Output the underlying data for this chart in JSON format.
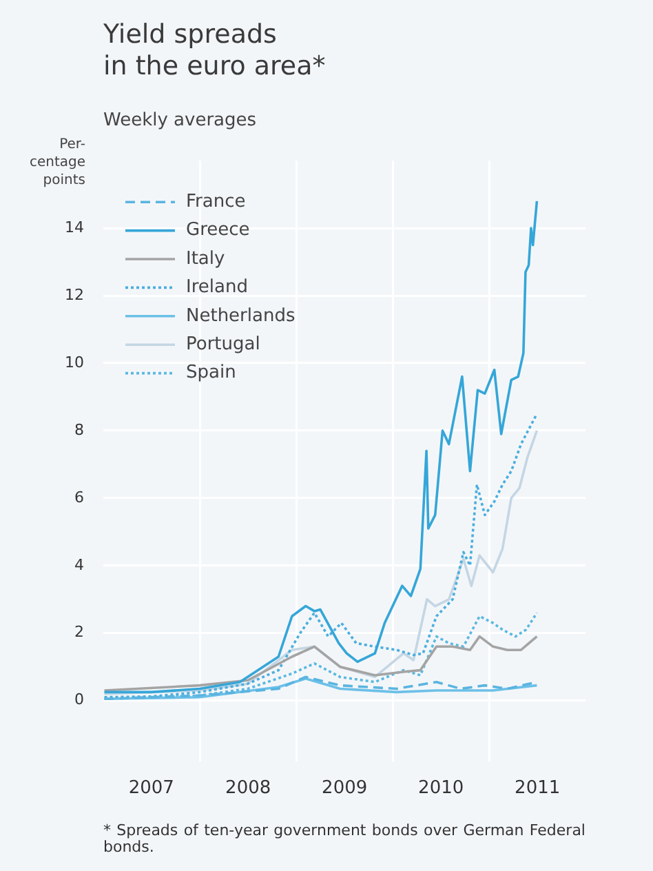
{
  "chart_data": {
    "type": "line",
    "title": "Yield spreads\nin the euro area*",
    "subtitle": "Weekly averages",
    "ylabel": "Per-\ncentage\npoints",
    "annotations": [
      "* Spreads of ten-year government bonds over German Federal bonds."
    ],
    "xlim": [
      "2007-01-01",
      "2011-12-31"
    ],
    "xticks": [
      {
        "value": "2007-07-02",
        "label": "2007"
      },
      {
        "value": "2008-01-01",
        "label": null
      },
      {
        "value": "2008-07-02",
        "label": "2008"
      },
      {
        "value": "2009-01-01",
        "label": null
      },
      {
        "value": "2009-07-02",
        "label": "2009"
      },
      {
        "value": "2010-01-01",
        "label": null
      },
      {
        "value": "2010-07-02",
        "label": "2010"
      },
      {
        "value": "2011-01-01",
        "label": null
      },
      {
        "value": "2011-07-02",
        "label": "2011"
      }
    ],
    "ylim": [
      -1.8,
      16
    ],
    "yticks": [
      0,
      2,
      4,
      6,
      8,
      10,
      12,
      14
    ],
    "grid": true,
    "legend": "top left",
    "marker": "none",
    "series": [
      {
        "name": "France",
        "color": "#5ab4e0",
        "line_style": "dashed",
        "x": [
          "2007-01-05",
          "2008-01-01",
          "2008-10-25",
          "2009-02-05",
          "2009-06-15",
          "2010-01-15",
          "2010-06-15",
          "2010-09-15",
          "2010-12-15",
          "2011-03-10",
          "2011-06-30"
        ],
        "values": [
          0.05,
          0.15,
          0.35,
          0.7,
          0.45,
          0.35,
          0.55,
          0.35,
          0.45,
          0.35,
          0.55
        ]
      },
      {
        "name": "Greece",
        "color": "#35a6d8",
        "line_style": "solid",
        "x": [
          "2007-01-05",
          "2007-07-01",
          "2008-01-01",
          "2008-06-01",
          "2008-10-25",
          "2008-12-15",
          "2009-02-05",
          "2009-03-10",
          "2009-04-01",
          "2009-06-10",
          "2009-07-10",
          "2009-08-20",
          "2009-10-25",
          "2009-12-01",
          "2010-02-05",
          "2010-03-10",
          "2010-04-15",
          "2010-05-08",
          "2010-05-15",
          "2010-06-10",
          "2010-07-08",
          "2010-08-01",
          "2010-09-20",
          "2010-10-20",
          "2010-11-18",
          "2010-12-15",
          "2011-01-20",
          "2011-02-15",
          "2011-03-25",
          "2011-04-20",
          "2011-05-10",
          "2011-05-18",
          "2011-05-30",
          "2011-06-08",
          "2011-06-15",
          "2011-06-30"
        ],
        "values": [
          0.25,
          0.25,
          0.35,
          0.55,
          1.3,
          2.5,
          2.8,
          2.65,
          2.7,
          1.7,
          1.4,
          1.15,
          1.4,
          2.3,
          3.4,
          3.1,
          3.9,
          7.4,
          5.1,
          5.5,
          8.0,
          7.6,
          9.6,
          6.8,
          9.2,
          9.1,
          9.8,
          7.9,
          9.5,
          9.6,
          10.3,
          12.7,
          12.9,
          14.0,
          13.5,
          14.8
        ]
      },
      {
        "name": "Italy",
        "color": "#a4a4a4",
        "line_style": "solid",
        "x": [
          "2007-01-05",
          "2008-01-01",
          "2008-07-01",
          "2008-12-15",
          "2009-03-10",
          "2009-06-15",
          "2009-10-25",
          "2010-02-10",
          "2010-04-15",
          "2010-06-15",
          "2010-08-15",
          "2010-10-20",
          "2010-11-25",
          "2011-01-15",
          "2011-03-10",
          "2011-05-01",
          "2011-06-30"
        ],
        "values": [
          0.3,
          0.45,
          0.6,
          1.3,
          1.6,
          1.0,
          0.75,
          0.85,
          0.9,
          1.6,
          1.6,
          1.5,
          1.9,
          1.6,
          1.5,
          1.5,
          1.9
        ]
      },
      {
        "name": "Ireland",
        "color": "#4aaede",
        "line_style": "dotted",
        "x": [
          "2007-01-05",
          "2007-07-01",
          "2008-01-01",
          "2008-07-01",
          "2008-10-25",
          "2009-01-15",
          "2009-03-10",
          "2009-05-01",
          "2009-06-20",
          "2009-08-15",
          "2009-10-25",
          "2010-01-15",
          "2010-03-20",
          "2010-04-25",
          "2010-06-15",
          "2010-08-15",
          "2010-09-25",
          "2010-10-20",
          "2010-11-15",
          "2010-12-15",
          "2011-01-20",
          "2011-02-20",
          "2011-03-25",
          "2011-05-01",
          "2011-06-30"
        ],
        "values": [
          0.1,
          0.12,
          0.25,
          0.5,
          0.9,
          2.0,
          2.6,
          1.9,
          2.3,
          1.7,
          1.6,
          1.5,
          1.35,
          1.4,
          2.5,
          3.0,
          4.4,
          4.0,
          6.4,
          5.5,
          5.9,
          6.4,
          6.8,
          7.6,
          8.5
        ]
      },
      {
        "name": "Netherlands",
        "color": "#6cc0e8",
        "line_style": "solid",
        "x": [
          "2007-01-05",
          "2008-01-01",
          "2008-10-25",
          "2009-02-05",
          "2009-06-15",
          "2010-01-15",
          "2010-06-15",
          "2011-01-15",
          "2011-06-30"
        ],
        "values": [
          0.05,
          0.1,
          0.4,
          0.65,
          0.35,
          0.25,
          0.3,
          0.3,
          0.45
        ]
      },
      {
        "name": "Portugal",
        "color": "#c4d6e4",
        "line_style": "solid",
        "x": [
          "2007-01-05",
          "2008-01-01",
          "2008-07-01",
          "2008-12-15",
          "2009-03-10",
          "2009-06-15",
          "2009-10-25",
          "2010-02-10",
          "2010-03-20",
          "2010-05-10",
          "2010-06-10",
          "2010-08-01",
          "2010-09-25",
          "2010-10-25",
          "2010-11-25",
          "2011-01-15",
          "2011-02-20",
          "2011-03-25",
          "2011-04-25",
          "2011-05-25",
          "2011-06-30"
        ],
        "values": [
          0.2,
          0.3,
          0.5,
          1.5,
          1.6,
          1.0,
          0.7,
          1.4,
          1.2,
          3.0,
          2.8,
          3.0,
          4.2,
          3.4,
          4.3,
          3.8,
          4.5,
          6.0,
          6.3,
          7.2,
          8.0
        ]
      },
      {
        "name": "Spain",
        "color": "#5ab8e0",
        "line_style": "dotted",
        "x": [
          "2007-01-05",
          "2008-01-01",
          "2008-07-01",
          "2008-12-15",
          "2009-03-10",
          "2009-06-15",
          "2009-10-25",
          "2010-02-10",
          "2010-04-15",
          "2010-06-15",
          "2010-08-01",
          "2010-09-25",
          "2010-11-25",
          "2011-01-15",
          "2011-02-20",
          "2011-04-10",
          "2011-05-20",
          "2011-06-30"
        ],
        "values": [
          0.05,
          0.15,
          0.35,
          0.8,
          1.1,
          0.7,
          0.55,
          0.9,
          0.75,
          1.9,
          1.7,
          1.6,
          2.5,
          2.3,
          2.1,
          1.9,
          2.1,
          2.6
        ]
      }
    ]
  }
}
